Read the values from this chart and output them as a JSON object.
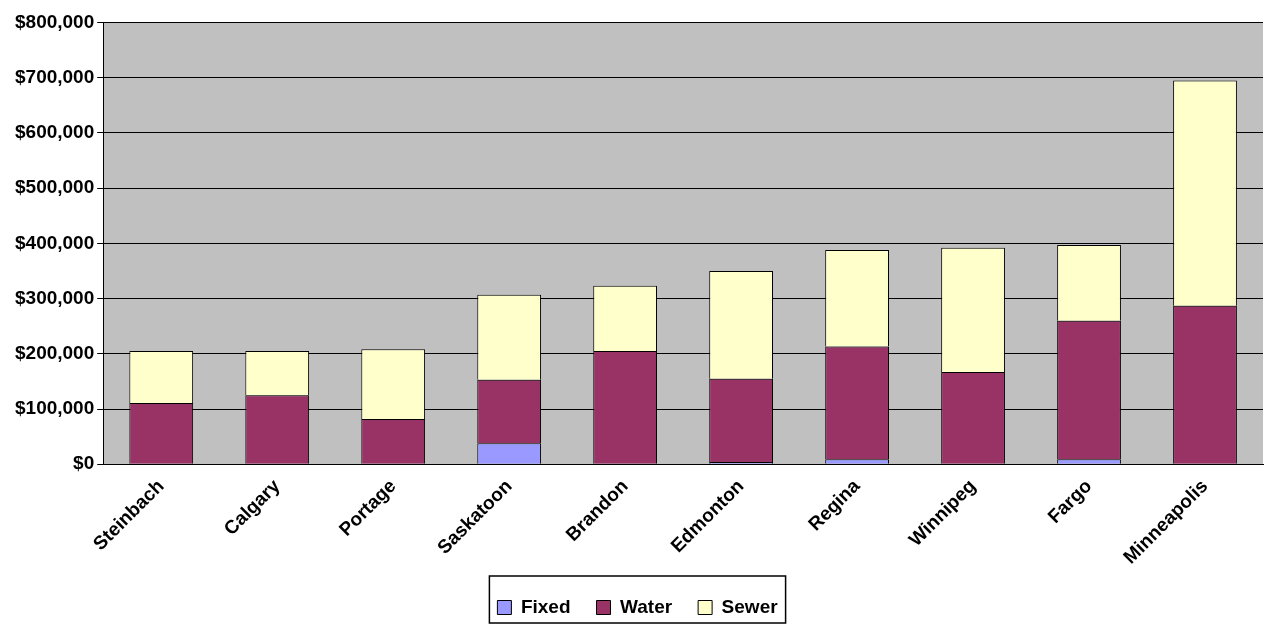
{
  "chart_data": {
    "type": "bar",
    "stacked": true,
    "categories": [
      "Steinbach",
      "Calgary",
      "Portage",
      "Saskatoon",
      "Brandon",
      "Edmonton",
      "Regina",
      "Winnipeg",
      "Fargo",
      "Minneapolis"
    ],
    "series": [
      {
        "name": "Fixed",
        "color": "#9999ff",
        "values": [
          0,
          0,
          0,
          38000,
          0,
          4000,
          9000,
          0,
          9000,
          0
        ]
      },
      {
        "name": "Water",
        "color": "#993366",
        "values": [
          111000,
          125000,
          82000,
          115000,
          205000,
          151000,
          204000,
          167000,
          251000,
          287000
        ]
      },
      {
        "name": "Sewer",
        "color": "#ffffcc",
        "values": [
          94000,
          80000,
          126000,
          154000,
          118000,
          195000,
          175000,
          225000,
          137000,
          408000
        ]
      }
    ],
    "ylim": [
      0,
      800000
    ],
    "yticks": [
      {
        "value": 0,
        "label": "$0"
      },
      {
        "value": 100000,
        "label": "$100,000"
      },
      {
        "value": 200000,
        "label": "$200,000"
      },
      {
        "value": 300000,
        "label": "$300,000"
      },
      {
        "value": 400000,
        "label": "$400,000"
      },
      {
        "value": 500000,
        "label": "$500,000"
      },
      {
        "value": 600000,
        "label": "$600,000"
      },
      {
        "value": 700000,
        "label": "$700,000"
      },
      {
        "value": 800000,
        "label": "$800,000"
      }
    ],
    "grid": "y",
    "legend": "bottom"
  }
}
